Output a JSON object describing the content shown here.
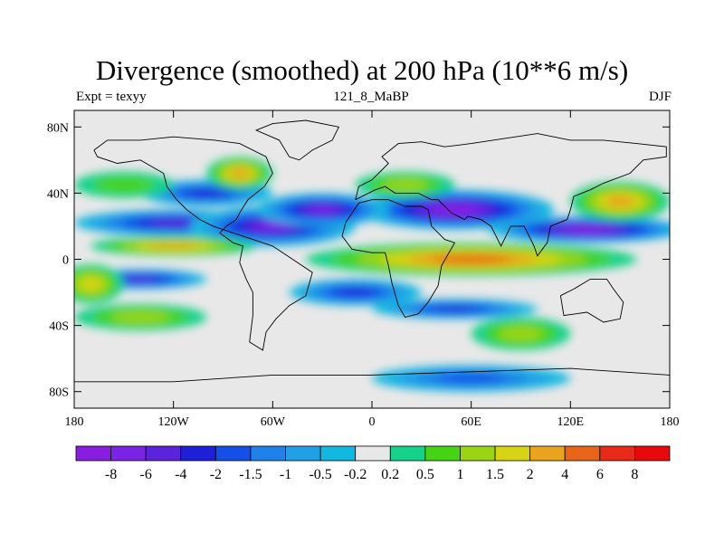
{
  "chart_data": {
    "type": "heatmap",
    "title": "Divergence (smoothed) at 200 hPa (10**6 m/s)",
    "subtitle_left": "Expt = texyy",
    "subtitle_center": "121_8_MaBP",
    "subtitle_right": "DJF",
    "x_range": [
      -180,
      180
    ],
    "y_range": [
      -90,
      90
    ],
    "x_ticks": [
      {
        "value": -180,
        "label": "180"
      },
      {
        "value": -120,
        "label": "120W"
      },
      {
        "value": -60,
        "label": "60W"
      },
      {
        "value": 0,
        "label": "0"
      },
      {
        "value": 60,
        "label": "60E"
      },
      {
        "value": 120,
        "label": "120E"
      },
      {
        "value": 180,
        "label": "180"
      }
    ],
    "y_ticks": [
      {
        "value": 80,
        "label": "80N"
      },
      {
        "value": 40,
        "label": "40N"
      },
      {
        "value": 0,
        "label": "0"
      },
      {
        "value": -40,
        "label": "40S"
      },
      {
        "value": -80,
        "label": "80S"
      }
    ],
    "colorbar": {
      "levels": [
        "-8",
        "-6",
        "-4",
        "-2",
        "-1.5",
        "-1",
        "-0.5",
        "-0.2",
        "0.2",
        "0.5",
        "1",
        "1.5",
        "2",
        "4",
        "6",
        "8"
      ],
      "colors": [
        "#8a1ee0",
        "#7a22e6",
        "#5a24dc",
        "#1f1fd8",
        "#1450e8",
        "#1e82e8",
        "#22a0e6",
        "#12b8e0",
        "#e8e8e8",
        "#14d28a",
        "#44d414",
        "#9ad414",
        "#d6d414",
        "#e8a41c",
        "#e86418",
        "#e82a18",
        "#e80a0a"
      ]
    },
    "features": [
      {
        "sign": "neg",
        "level": 6,
        "lon": -120,
        "lat": 22,
        "rx": 60,
        "ry": 8
      },
      {
        "sign": "neg",
        "level": 7,
        "lon": -60,
        "lat": 20,
        "rx": 50,
        "ry": 12
      },
      {
        "sign": "neg",
        "level": 8,
        "lon": 50,
        "lat": 30,
        "rx": 60,
        "ry": 12
      },
      {
        "sign": "neg",
        "level": 8,
        "lon": 130,
        "lat": 18,
        "rx": 60,
        "ry": 8
      },
      {
        "sign": "neg",
        "level": 7,
        "lon": -30,
        "lat": 30,
        "rx": 40,
        "ry": 10
      },
      {
        "sign": "neg",
        "level": 6,
        "lon": -140,
        "lat": -12,
        "rx": 40,
        "ry": 6
      },
      {
        "sign": "neg",
        "level": 5,
        "lon": -10,
        "lat": -20,
        "rx": 40,
        "ry": 8
      },
      {
        "sign": "neg",
        "level": 5,
        "lon": 50,
        "lat": -30,
        "rx": 50,
        "ry": 6
      },
      {
        "sign": "neg",
        "level": 4,
        "lon": 60,
        "lat": -72,
        "rx": 60,
        "ry": 8
      },
      {
        "sign": "neg",
        "level": 5,
        "lon": -100,
        "lat": 40,
        "rx": 40,
        "ry": 8
      },
      {
        "sign": "pos",
        "level": 6,
        "lon": 60,
        "lat": 0,
        "rx": 100,
        "ry": 10
      },
      {
        "sign": "pos",
        "level": 5,
        "lon": -120,
        "lat": 8,
        "rx": 50,
        "ry": 6
      },
      {
        "sign": "pos",
        "level": 5,
        "lon": 150,
        "lat": 35,
        "rx": 30,
        "ry": 12
      },
      {
        "sign": "pos",
        "level": 5,
        "lon": -80,
        "lat": 52,
        "rx": 20,
        "ry": 10
      },
      {
        "sign": "pos",
        "level": 4,
        "lon": -170,
        "lat": -15,
        "rx": 20,
        "ry": 12
      },
      {
        "sign": "pos",
        "level": 3,
        "lon": -140,
        "lat": -35,
        "rx": 40,
        "ry": 8
      },
      {
        "sign": "pos",
        "level": 3,
        "lon": 90,
        "lat": -45,
        "rx": 30,
        "ry": 10
      },
      {
        "sign": "pos",
        "level": 3,
        "lon": 20,
        "lat": 45,
        "rx": 30,
        "ry": 8
      },
      {
        "sign": "pos",
        "level": 2,
        "lon": -150,
        "lat": 45,
        "rx": 30,
        "ry": 8
      }
    ],
    "grid": false,
    "legend": "bottom"
  }
}
